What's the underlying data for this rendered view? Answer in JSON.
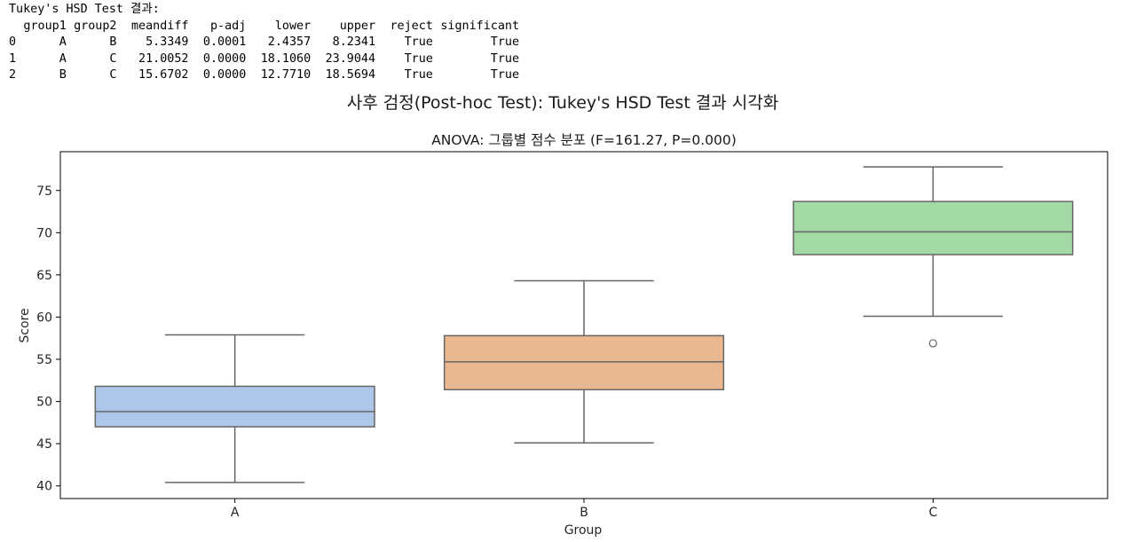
{
  "output": {
    "heading": "Tukey's HSD Test 결과:",
    "columns": [
      "",
      "group1",
      "group2",
      "meandiff",
      "p-adj",
      "lower",
      "upper",
      "reject",
      "significant"
    ],
    "rows": [
      [
        "0",
        "A",
        "B",
        "5.3349",
        "0.0001",
        "2.4357",
        "8.2341",
        "True",
        "True"
      ],
      [
        "1",
        "A",
        "C",
        "21.0052",
        "0.0000",
        "18.1060",
        "23.9044",
        "True",
        "True"
      ],
      [
        "2",
        "B",
        "C",
        "15.6702",
        "0.0000",
        "12.7710",
        "18.5694",
        "True",
        "True"
      ]
    ]
  },
  "figure": {
    "suptitle": "사후 검정(Post-hoc Test): Tukey's HSD Test 결과 시각화"
  },
  "chart_data": {
    "type": "box",
    "title": "ANOVA: 그룹별 점수 분포 (F=161.27, P=0.000)",
    "xlabel": "Group",
    "ylabel": "Score",
    "categories": [
      "A",
      "B",
      "C"
    ],
    "ylim": [
      38.5,
      79.6
    ],
    "yticks": [
      40,
      45,
      50,
      55,
      60,
      65,
      70,
      75
    ],
    "boxes": [
      {
        "category": "A",
        "whisker_low": 40.4,
        "q1": 47.0,
        "median": 48.8,
        "q3": 51.8,
        "whisker_high": 57.9,
        "fliers": [],
        "color": "#aec7e8"
      },
      {
        "category": "B",
        "whisker_low": 45.1,
        "q1": 51.4,
        "median": 54.7,
        "q3": 57.8,
        "whisker_high": 64.3,
        "fliers": [],
        "color": "#eab890"
      },
      {
        "category": "C",
        "whisker_low": 60.1,
        "q1": 67.4,
        "median": 70.1,
        "q3": 73.7,
        "whisker_high": 77.8,
        "fliers": [
          56.9
        ],
        "color": "#a3d9a4"
      }
    ],
    "grid": false,
    "legend": false
  }
}
